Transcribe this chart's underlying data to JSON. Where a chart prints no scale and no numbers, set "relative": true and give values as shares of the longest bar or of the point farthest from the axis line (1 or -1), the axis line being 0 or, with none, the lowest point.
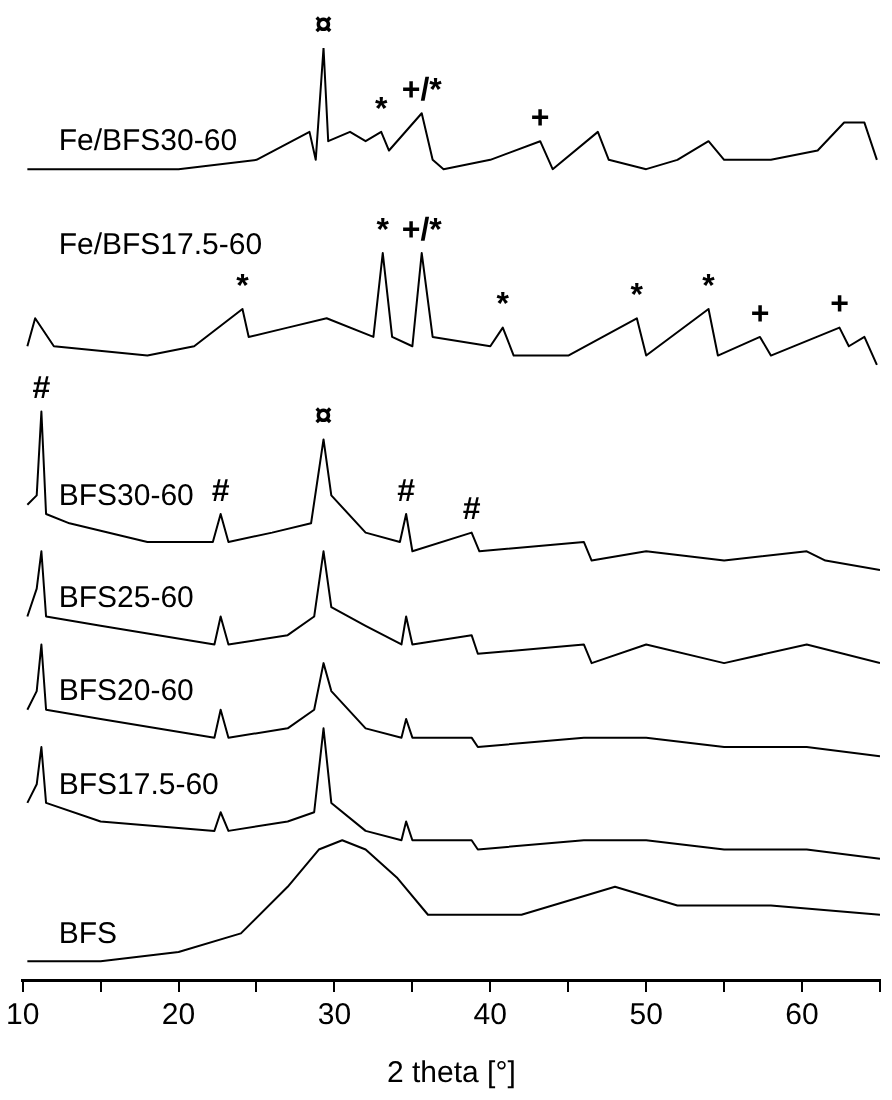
{
  "chart_data": {
    "type": "line",
    "relative": true,
    "xlabel": "2 theta [°]",
    "xlim": [
      10,
      65
    ],
    "xticks": [
      10,
      {
        "value": 15,
        "label": null
      },
      20,
      {
        "value": 25,
        "label": null
      },
      30,
      {
        "value": 35,
        "label": null
      },
      40,
      {
        "value": 45,
        "label": null
      },
      50,
      {
        "value": 55,
        "label": null
      },
      60,
      {
        "value": 65,
        "label": null
      }
    ],
    "marker": "none",
    "series": [
      {
        "name": "Fe/BFS30-60",
        "color": "#000000",
        "x": [
          10.3,
          20,
          25,
          28.4,
          28.8,
          29.3,
          29.6,
          31,
          32,
          33,
          33.5,
          35.6,
          36.3,
          37,
          40,
          43.2,
          44,
          46.9,
          47.6,
          50,
          52,
          54,
          55,
          58,
          61,
          62.7,
          64,
          64.8
        ],
        "values": [
          0.87,
          0.87,
          0.88,
          0.91,
          0.88,
          1.0,
          0.9,
          0.91,
          0.9,
          0.91,
          0.89,
          0.93,
          0.88,
          0.87,
          0.88,
          0.9,
          0.87,
          0.91,
          0.88,
          0.87,
          0.88,
          0.9,
          0.88,
          0.88,
          0.89,
          0.92,
          0.92,
          0.88
        ]
      },
      {
        "name": "Fe/BFS17.5-60",
        "color": "#000000",
        "x": [
          10.3,
          10.8,
          12,
          18,
          21,
          24.1,
          24.5,
          27,
          29.5,
          32.5,
          33.1,
          33.7,
          35,
          35.6,
          36.3,
          40,
          40.8,
          41.5,
          45,
          49.4,
          50,
          54,
          54.6,
          57.3,
          58,
          62.4,
          63,
          64,
          64.8
        ],
        "values": [
          0.68,
          0.71,
          0.68,
          0.67,
          0.68,
          0.72,
          0.69,
          0.7,
          0.71,
          0.69,
          0.78,
          0.69,
          0.68,
          0.78,
          0.69,
          0.68,
          0.7,
          0.67,
          0.67,
          0.71,
          0.67,
          0.72,
          0.67,
          0.69,
          0.67,
          0.7,
          0.68,
          0.69,
          0.66
        ]
      },
      {
        "name": "BFS30-60",
        "color": "#000000",
        "x": [
          10.3,
          10.9,
          11.2,
          11.5,
          13,
          18,
          22.2,
          22.7,
          23.2,
          26,
          28.5,
          29.3,
          29.8,
          32,
          34.2,
          34.6,
          35,
          38.8,
          39.3,
          46,
          46.5,
          50,
          55,
          60.3,
          61.5,
          65
        ],
        "values": [
          0.51,
          0.52,
          0.61,
          0.5,
          0.49,
          0.47,
          0.47,
          0.5,
          0.47,
          0.48,
          0.49,
          0.58,
          0.52,
          0.48,
          0.47,
          0.5,
          0.46,
          0.48,
          0.46,
          0.47,
          0.45,
          0.46,
          0.45,
          0.46,
          0.45,
          0.44
        ]
      },
      {
        "name": "BFS25-60",
        "color": "#000000",
        "x": [
          10.3,
          10.9,
          11.2,
          11.5,
          15,
          22.3,
          22.7,
          23.2,
          27,
          28.7,
          29.3,
          29.8,
          32,
          34.3,
          34.6,
          35,
          38.8,
          39.2,
          46,
          46.5,
          50,
          55,
          60.3,
          65
        ],
        "values": [
          0.39,
          0.42,
          0.46,
          0.39,
          0.38,
          0.36,
          0.39,
          0.36,
          0.37,
          0.39,
          0.46,
          0.4,
          0.38,
          0.36,
          0.39,
          0.36,
          0.37,
          0.35,
          0.36,
          0.34,
          0.36,
          0.34,
          0.36,
          0.34
        ]
      },
      {
        "name": "BFS20-60",
        "color": "#000000",
        "x": [
          10.3,
          10.9,
          11.2,
          11.5,
          15,
          22.3,
          22.7,
          23.2,
          27,
          28.7,
          29.3,
          29.8,
          32,
          34.3,
          34.6,
          35,
          38.8,
          39.2,
          46,
          50,
          55,
          60.3,
          65
        ],
        "values": [
          0.29,
          0.31,
          0.36,
          0.29,
          0.28,
          0.26,
          0.29,
          0.26,
          0.27,
          0.29,
          0.34,
          0.31,
          0.27,
          0.26,
          0.28,
          0.26,
          0.26,
          0.25,
          0.26,
          0.26,
          0.25,
          0.25,
          0.24
        ]
      },
      {
        "name": "BFS17.5-60",
        "color": "#000000",
        "x": [
          10.3,
          10.9,
          11.2,
          11.5,
          15,
          22.3,
          22.7,
          23.2,
          27,
          28.7,
          29.3,
          29.8,
          32,
          34.3,
          34.6,
          35,
          38.8,
          39.2,
          46,
          50,
          55,
          60.3,
          65
        ],
        "values": [
          0.19,
          0.21,
          0.25,
          0.19,
          0.17,
          0.16,
          0.18,
          0.16,
          0.17,
          0.18,
          0.27,
          0.19,
          0.16,
          0.15,
          0.17,
          0.15,
          0.15,
          0.14,
          0.15,
          0.15,
          0.14,
          0.14,
          0.13
        ]
      },
      {
        "name": "BFS",
        "color": "#000000",
        "x": [
          10.3,
          15,
          20,
          24,
          27,
          29,
          30.5,
          32,
          34,
          36,
          38,
          42,
          48,
          52,
          58,
          65
        ],
        "values": [
          0.02,
          0.02,
          0.03,
          0.05,
          0.1,
          0.14,
          0.15,
          0.14,
          0.11,
          0.07,
          0.07,
          0.07,
          0.1,
          0.08,
          0.08,
          0.07
        ]
      }
    ],
    "annotations": [
      {
        "text": "¤",
        "x": 29.3,
        "y": 1.0
      },
      {
        "text": "*",
        "x": 33.0,
        "y": 0.91
      },
      {
        "text": "+/*",
        "x": 35.6,
        "y": 0.93
      },
      {
        "text": "+",
        "x": 43.2,
        "y": 0.9
      },
      {
        "text": "*",
        "x": 24.1,
        "y": 0.72
      },
      {
        "text": "*",
        "x": 33.1,
        "y": 0.78
      },
      {
        "text": "+/*",
        "x": 35.6,
        "y": 0.78
      },
      {
        "text": "*",
        "x": 40.8,
        "y": 0.7
      },
      {
        "text": "*",
        "x": 49.4,
        "y": 0.71
      },
      {
        "text": "*",
        "x": 54.0,
        "y": 0.72
      },
      {
        "text": "+",
        "x": 57.3,
        "y": 0.69
      },
      {
        "text": "+",
        "x": 62.4,
        "y": 0.7
      },
      {
        "text": "#",
        "x": 11.2,
        "y": 0.61
      },
      {
        "text": "#",
        "x": 22.7,
        "y": 0.5
      },
      {
        "text": "¤",
        "x": 29.3,
        "y": 0.58
      },
      {
        "text": "#",
        "x": 34.6,
        "y": 0.5
      },
      {
        "text": "#",
        "x": 38.8,
        "y": 0.48
      }
    ]
  }
}
